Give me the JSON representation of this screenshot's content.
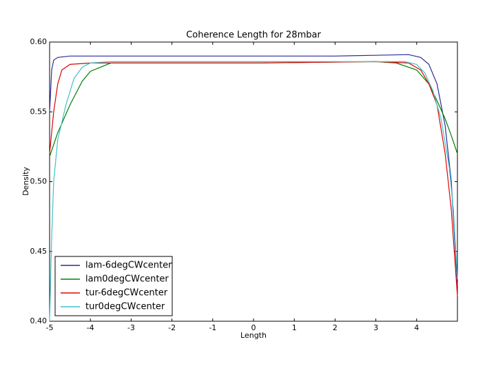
{
  "chart_data": {
    "type": "line",
    "title": "Coherence Length for 28mbar",
    "xlabel": "Length",
    "ylabel": "Density",
    "xlim": [
      -5,
      5
    ],
    "xticks": [
      -5,
      -4,
      -3,
      -2,
      -1,
      0,
      1,
      2,
      3,
      4
    ],
    "ylim": [
      0.4,
      0.6
    ],
    "yticks": [
      {
        "value": 0.4,
        "label": "0.40"
      },
      0.45,
      {
        "value": 0.5,
        "label": "0.50"
      },
      0.55,
      {
        "value": 0.6,
        "label": "0.60"
      }
    ],
    "legend": "lower left",
    "series": [
      {
        "name": "lam-6degCWcenter",
        "color": "#2a2a9a",
        "x": [
          -5,
          -4.95,
          -4.9,
          -4.8,
          -4.5,
          -4,
          -2,
          0,
          2,
          3,
          3.8,
          4.1,
          4.3,
          4.5,
          4.7,
          4.85,
          5
        ],
        "values": [
          0.55,
          0.58,
          0.587,
          0.589,
          0.59,
          0.59,
          0.59,
          0.59,
          0.59,
          0.5905,
          0.591,
          0.589,
          0.584,
          0.57,
          0.54,
          0.5,
          0.425
        ]
      },
      {
        "name": "lam0degCWcenter",
        "color": "#008000",
        "x": [
          -5,
          -4.8,
          -4.5,
          -4.2,
          -4,
          -3.5,
          0,
          3,
          3.5,
          4,
          4.3,
          4.5,
          4.7,
          4.85,
          5
        ],
        "values": [
          0.518,
          0.535,
          0.555,
          0.572,
          0.579,
          0.585,
          0.585,
          0.586,
          0.585,
          0.58,
          0.57,
          0.558,
          0.545,
          0.533,
          0.52
        ]
      },
      {
        "name": "tur-6degCWcenter",
        "color": "#e00000",
        "x": [
          -5,
          -4.9,
          -4.8,
          -4.7,
          -4.5,
          -4,
          0,
          3,
          3.8,
          4.1,
          4.3,
          4.5,
          4.7,
          4.85,
          5
        ],
        "values": [
          0.52,
          0.55,
          0.57,
          0.58,
          0.584,
          0.585,
          0.585,
          0.586,
          0.585,
          0.58,
          0.57,
          0.555,
          0.52,
          0.48,
          0.418
        ]
      },
      {
        "name": "tur0degCWcenter",
        "color": "#40c0c8",
        "x": [
          -5,
          -4.95,
          -4.9,
          -4.8,
          -4.6,
          -4.4,
          -4.2,
          -4,
          -3.5,
          0,
          3,
          3.7,
          4,
          4.2,
          4.4,
          4.6,
          4.8,
          4.9,
          5
        ],
        "values": [
          0.4,
          0.46,
          0.5,
          0.53,
          0.555,
          0.574,
          0.582,
          0.585,
          0.586,
          0.586,
          0.586,
          0.586,
          0.584,
          0.578,
          0.565,
          0.545,
          0.51,
          0.48,
          0.43
        ]
      }
    ]
  }
}
